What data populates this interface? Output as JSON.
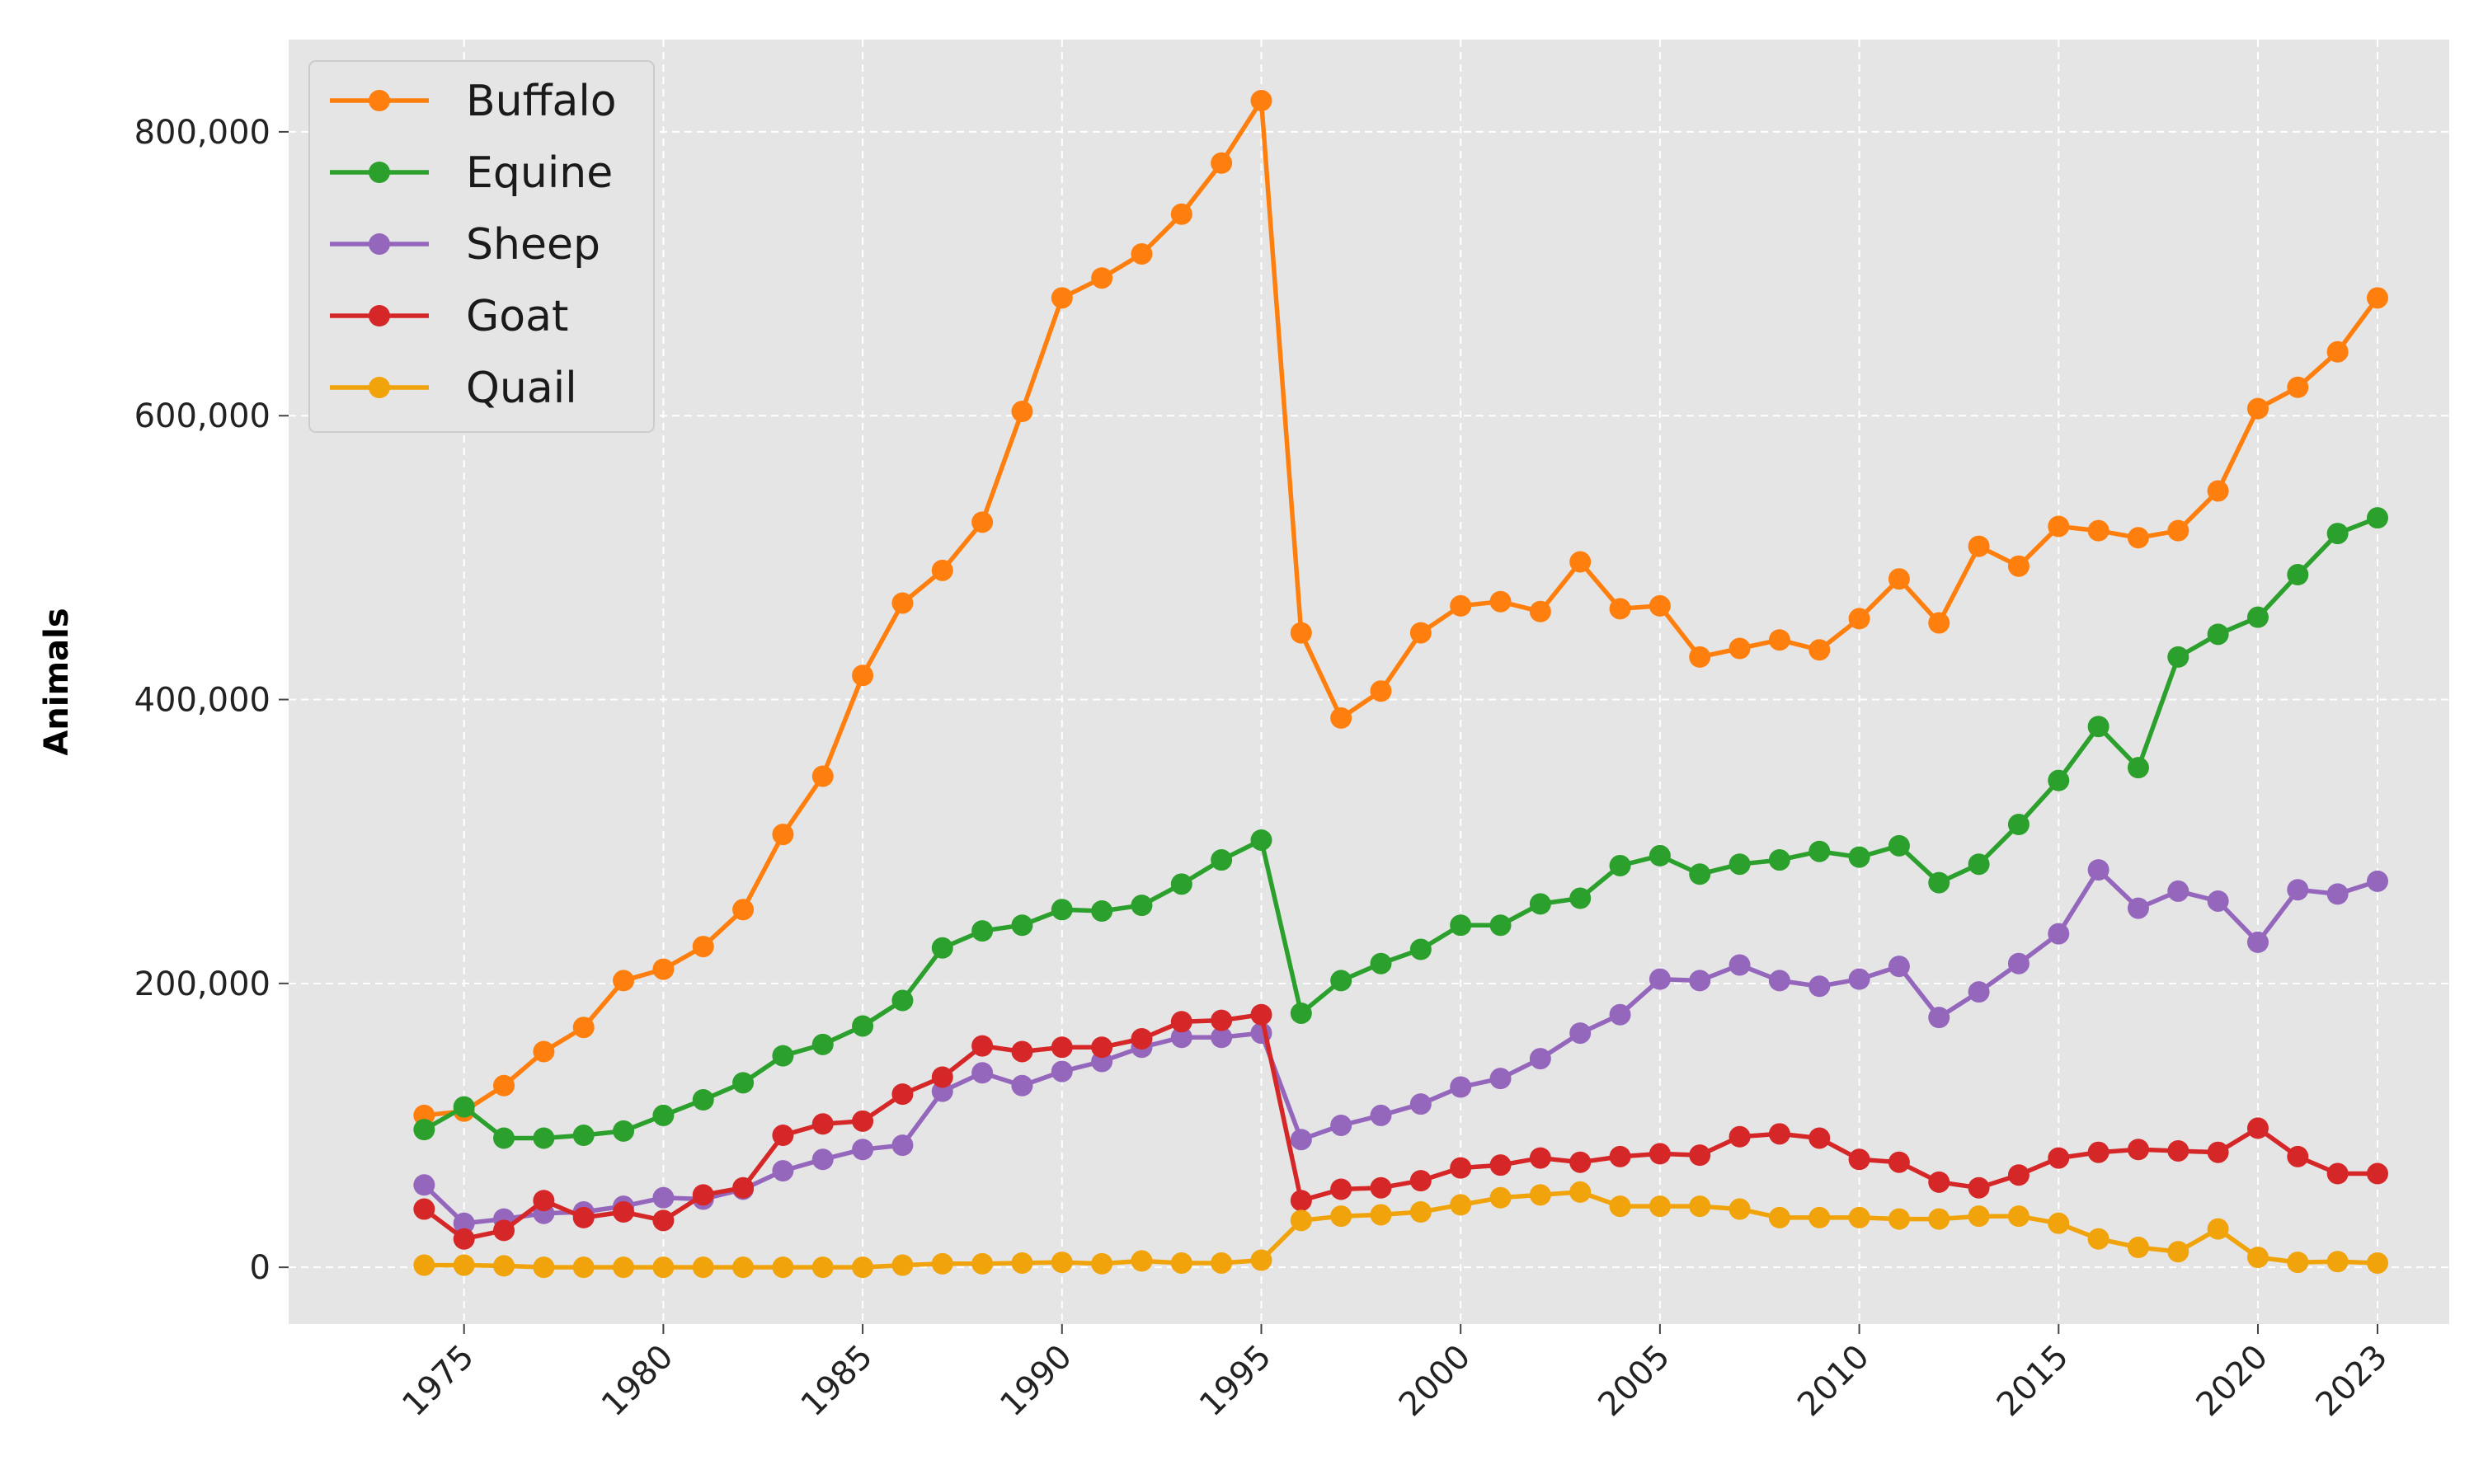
{
  "chart_data": {
    "type": "line",
    "title": "",
    "xlabel": "",
    "ylabel": "Animals",
    "xlim": [
      1970.6,
      2024.8
    ],
    "ylim": [
      -40000,
      865000
    ],
    "grid": true,
    "legend_position": "top-left",
    "x_ticks": [
      1975,
      1980,
      1985,
      1990,
      1995,
      2000,
      2005,
      2010,
      2015,
      2020,
      2023
    ],
    "y_ticks": [
      0,
      200000,
      400000,
      600000,
      800000
    ],
    "y_tick_labels": [
      "0",
      "200,000",
      "400,000",
      "600,000",
      "800,000"
    ],
    "x": [
      1974,
      1975,
      1976,
      1977,
      1978,
      1979,
      1980,
      1981,
      1982,
      1983,
      1984,
      1985,
      1986,
      1987,
      1988,
      1989,
      1990,
      1991,
      1992,
      1993,
      1994,
      1995,
      1996,
      1997,
      1998,
      1999,
      2000,
      2001,
      2002,
      2003,
      2004,
      2005,
      2006,
      2007,
      2008,
      2009,
      2010,
      2011,
      2012,
      2013,
      2014,
      2015,
      2016,
      2017,
      2018,
      2019,
      2020,
      2021,
      2022,
      2023
    ],
    "series": [
      {
        "name": "Buffalo",
        "color": "#ff7f0e",
        "values": [
          107000,
          110000,
          128000,
          152000,
          169000,
          202000,
          210000,
          226000,
          252000,
          305000,
          346000,
          417000,
          468000,
          491000,
          525000,
          603000,
          683000,
          697000,
          714000,
          742000,
          778000,
          822000,
          447000,
          387000,
          406000,
          447000,
          466000,
          469000,
          462000,
          497000,
          464000,
          466000,
          430000,
          436000,
          442000,
          435000,
          457000,
          485000,
          454000,
          508000,
          494000,
          522000,
          519000,
          514000,
          519000,
          547000,
          605000,
          620000,
          645000,
          683000
        ]
      },
      {
        "name": "Equine",
        "color": "#2ca02c",
        "values": [
          97000,
          113000,
          91000,
          91000,
          93000,
          96000,
          107000,
          118000,
          130000,
          149000,
          157000,
          170000,
          188000,
          225000,
          237000,
          241000,
          252000,
          251000,
          255000,
          270000,
          287000,
          301000,
          179000,
          202000,
          214000,
          224000,
          241000,
          241000,
          256000,
          260000,
          283000,
          290000,
          277000,
          284000,
          287000,
          293000,
          289000,
          297000,
          271000,
          284000,
          312000,
          343000,
          381000,
          352000,
          430000,
          446000,
          458000,
          488000,
          517000,
          528000
        ]
      },
      {
        "name": "Sheep",
        "color": "#9467bd",
        "values": [
          58000,
          31000,
          34000,
          38000,
          39000,
          43000,
          49000,
          48000,
          55000,
          68000,
          76000,
          83000,
          86000,
          124000,
          137000,
          128000,
          138000,
          145000,
          155000,
          162000,
          162000,
          165000,
          90000,
          100000,
          107000,
          115000,
          127000,
          133000,
          147000,
          165000,
          178000,
          203000,
          202000,
          213000,
          202000,
          198000,
          203000,
          212000,
          176000,
          194000,
          214000,
          235000,
          280000,
          253000,
          265000,
          258000,
          229000,
          266000,
          263000,
          272000
        ]
      },
      {
        "name": "Goat",
        "color": "#d62728",
        "values": [
          41000,
          20000,
          26000,
          47000,
          35000,
          39000,
          33000,
          51000,
          56000,
          93000,
          101000,
          103000,
          122000,
          134000,
          156000,
          152000,
          155000,
          155000,
          161000,
          173000,
          174000,
          178000,
          47000,
          55000,
          56000,
          61000,
          70000,
          72000,
          77000,
          74000,
          78000,
          80000,
          79000,
          92000,
          94000,
          91000,
          76000,
          74000,
          60000,
          56000,
          65000,
          77000,
          81000,
          83000,
          82000,
          81000,
          98000,
          78000,
          66000,
          66000
        ]
      },
      {
        "name": "Quail",
        "color": "#f0a30a",
        "values": [
          1500,
          1500,
          1000,
          0,
          0,
          0,
          0,
          0,
          0,
          0,
          0,
          0,
          1500,
          2500,
          2500,
          3000,
          3500,
          2500,
          4500,
          3000,
          3000,
          5000,
          33000,
          36000,
          37000,
          39000,
          44000,
          49000,
          51000,
          53000,
          43000,
          43000,
          43000,
          41000,
          35000,
          35000,
          35000,
          34000,
          34000,
          36000,
          36000,
          31000,
          20000,
          14000,
          11000,
          27000,
          7000,
          3500,
          4000,
          3000
        ]
      }
    ]
  }
}
